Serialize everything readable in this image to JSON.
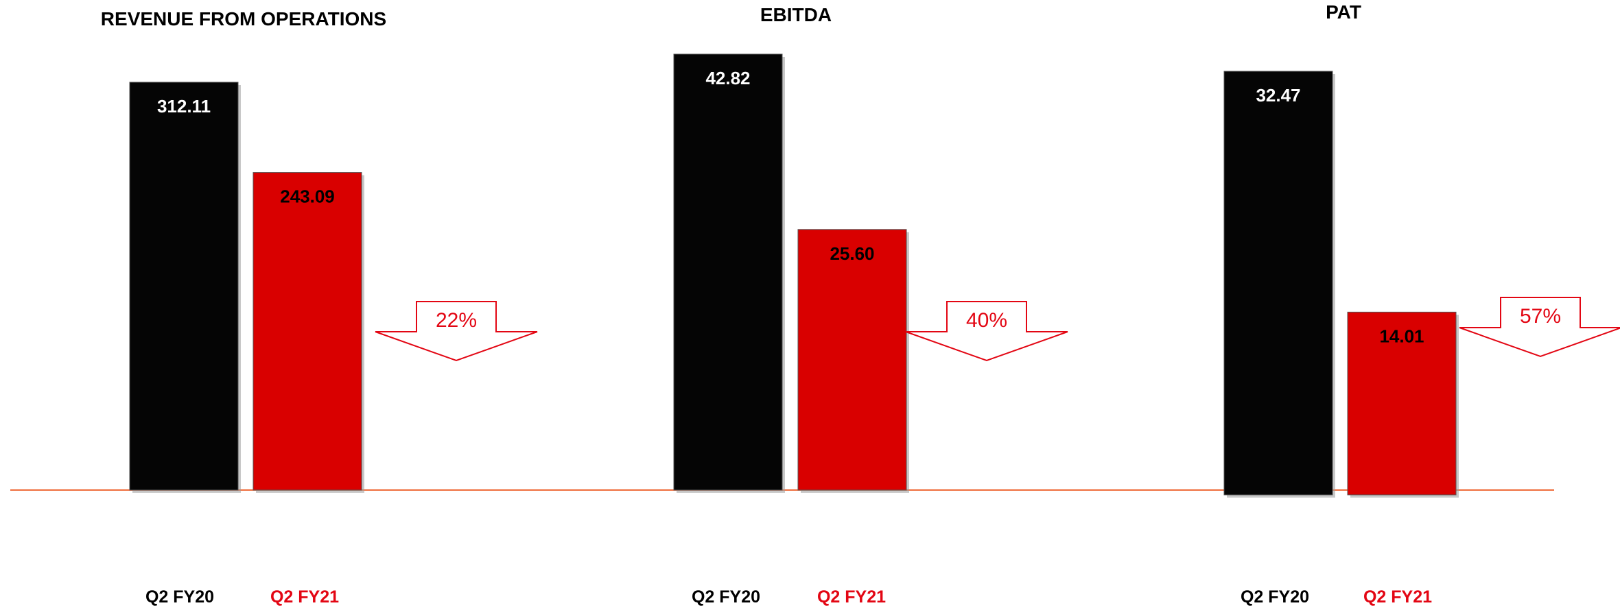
{
  "chart_data": [
    {
      "type": "bar",
      "title": "REVENUE FROM OPERATIONS",
      "categories": [
        "Q2 FY20",
        "Q2 FY21"
      ],
      "values": [
        312.11,
        243.09
      ],
      "value_labels": [
        "312.11",
        "243.09"
      ],
      "change_label": "22%",
      "colors": [
        "#050505",
        "#d90000"
      ],
      "ylim": [
        0,
        312.11
      ]
    },
    {
      "type": "bar",
      "title": "EBITDA",
      "categories": [
        "Q2 FY20",
        "Q2 FY21"
      ],
      "values": [
        42.82,
        25.6
      ],
      "value_labels": [
        "42.82",
        "25.60"
      ],
      "change_label": "40%",
      "colors": [
        "#050505",
        "#d90000"
      ],
      "ylim": [
        0,
        42.82
      ]
    },
    {
      "type": "bar",
      "title": "PAT",
      "categories": [
        "Q2 FY20",
        "Q2 FY21"
      ],
      "values": [
        32.47,
        14.01
      ],
      "value_labels": [
        "32.47",
        "14.01"
      ],
      "change_label": "57%",
      "colors": [
        "#050505",
        "#d90000"
      ],
      "ylim": [
        0,
        32.47
      ]
    }
  ],
  "colors": {
    "prev_bar": "#050505",
    "curr_bar": "#d90000",
    "prev_value_text": "#ffffff",
    "curr_value_text": "#000000",
    "arrow_stroke": "#e30613",
    "arrow_text": "#e30613",
    "baseline": "#ef6c3b",
    "prev_category_text": "#000000",
    "curr_category_text": "#e30613"
  }
}
